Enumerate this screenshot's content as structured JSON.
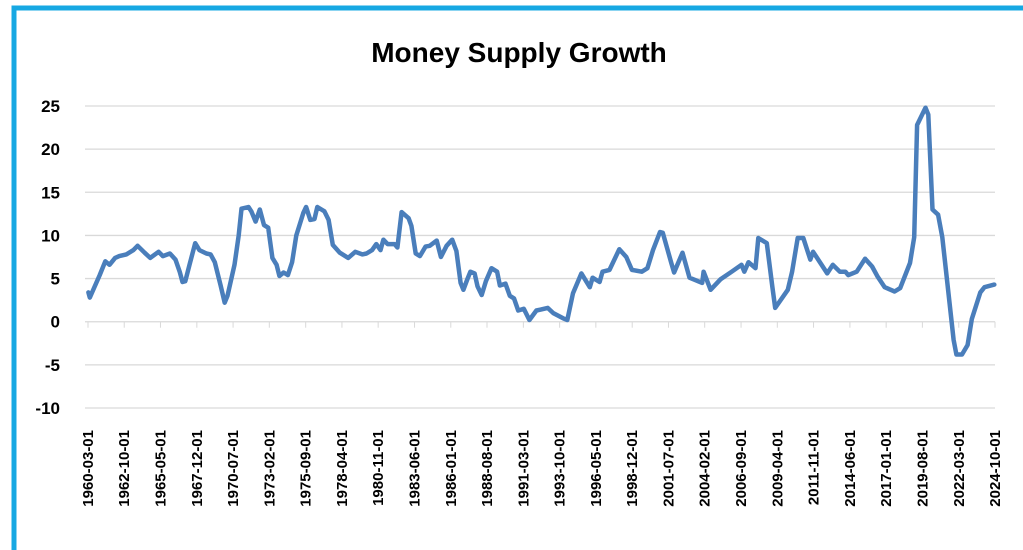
{
  "chart_data": {
    "type": "line",
    "title": "Money Supply Growth",
    "xlabel": "",
    "ylabel": "",
    "ylim": [
      -10,
      25
    ],
    "yticks": [
      "25",
      "20",
      "15",
      "10",
      "5",
      "0",
      "-5",
      "-10"
    ],
    "ytick_values": [
      25,
      20,
      15,
      10,
      5,
      0,
      -5,
      -10
    ],
    "grid": true,
    "legend": "none",
    "x_tick_labels": [
      "1960-03-01",
      "1962-10-01",
      "1965-05-01",
      "1967-12-01",
      "1970-07-01",
      "1973-02-01",
      "1975-09-01",
      "1978-04-01",
      "1980-11-01",
      "1983-06-01",
      "1986-01-01",
      "1988-08-01",
      "1991-03-01",
      "1993-10-01",
      "1996-05-01",
      "1998-12-01",
      "2001-07-01",
      "2004-02-01",
      "2006-09-01",
      "2009-04-01",
      "2011-11-01",
      "2014-06-01",
      "2017-01-01",
      "2019-08-01",
      "2022-03-01",
      "2024-10-01"
    ],
    "x_tick_years": [
      1960.17,
      1962.75,
      1965.33,
      1967.92,
      1970.5,
      1973.08,
      1975.67,
      1978.25,
      1980.83,
      1983.42,
      1986.0,
      1988.58,
      1991.17,
      1993.75,
      1996.33,
      1998.92,
      2001.5,
      2004.08,
      2006.67,
      2009.25,
      2011.83,
      2014.42,
      2017.0,
      2019.58,
      2022.17,
      2024.75
    ],
    "color": "#4a7ebb",
    "border_color": "#17a8e3",
    "series": [
      {
        "name": "Money Supply Growth",
        "points": [
          [
            1960.2,
            3.4
          ],
          [
            1960.3,
            2.8
          ],
          [
            1961.0,
            5.4
          ],
          [
            1961.4,
            7.0
          ],
          [
            1961.7,
            6.6
          ],
          [
            1962.1,
            7.4
          ],
          [
            1962.4,
            7.6
          ],
          [
            1962.9,
            7.8
          ],
          [
            1963.4,
            8.3
          ],
          [
            1963.7,
            8.8
          ],
          [
            1964.2,
            8.0
          ],
          [
            1964.6,
            7.4
          ],
          [
            1965.2,
            8.1
          ],
          [
            1965.5,
            7.6
          ],
          [
            1966.0,
            7.9
          ],
          [
            1966.4,
            7.2
          ],
          [
            1966.7,
            5.8
          ],
          [
            1966.9,
            4.6
          ],
          [
            1967.1,
            4.7
          ],
          [
            1967.4,
            6.6
          ],
          [
            1967.8,
            9.1
          ],
          [
            1968.1,
            8.3
          ],
          [
            1968.6,
            7.9
          ],
          [
            1968.9,
            7.8
          ],
          [
            1969.2,
            6.9
          ],
          [
            1969.6,
            4.3
          ],
          [
            1969.9,
            2.2
          ],
          [
            1970.1,
            3.0
          ],
          [
            1970.6,
            6.6
          ],
          [
            1970.9,
            10.0
          ],
          [
            1971.1,
            13.1
          ],
          [
            1971.6,
            13.3
          ],
          [
            1971.8,
            12.8
          ],
          [
            1972.1,
            11.6
          ],
          [
            1972.4,
            13.0
          ],
          [
            1972.7,
            11.2
          ],
          [
            1973.0,
            10.9
          ],
          [
            1973.3,
            7.4
          ],
          [
            1973.6,
            6.6
          ],
          [
            1973.8,
            5.3
          ],
          [
            1974.1,
            5.7
          ],
          [
            1974.4,
            5.4
          ],
          [
            1974.7,
            6.9
          ],
          [
            1975.0,
            10.0
          ],
          [
            1975.5,
            12.6
          ],
          [
            1975.7,
            13.3
          ],
          [
            1976.0,
            11.8
          ],
          [
            1976.3,
            11.9
          ],
          [
            1976.5,
            13.3
          ],
          [
            1977.0,
            12.8
          ],
          [
            1977.3,
            11.8
          ],
          [
            1977.6,
            8.9
          ],
          [
            1978.1,
            8.0
          ],
          [
            1978.7,
            7.4
          ],
          [
            1979.2,
            8.1
          ],
          [
            1979.7,
            7.8
          ],
          [
            1980.0,
            7.9
          ],
          [
            1980.4,
            8.3
          ],
          [
            1980.7,
            9.0
          ],
          [
            1981.0,
            8.3
          ],
          [
            1981.2,
            9.5
          ],
          [
            1981.5,
            9.0
          ],
          [
            1982.0,
            9.0
          ],
          [
            1982.2,
            8.6
          ],
          [
            1982.5,
            12.7
          ],
          [
            1983.0,
            12.0
          ],
          [
            1983.2,
            11.1
          ],
          [
            1983.5,
            7.9
          ],
          [
            1983.8,
            7.6
          ],
          [
            1984.2,
            8.7
          ],
          [
            1984.5,
            8.8
          ],
          [
            1985.0,
            9.4
          ],
          [
            1985.3,
            7.5
          ],
          [
            1985.7,
            8.8
          ],
          [
            1986.1,
            9.5
          ],
          [
            1986.4,
            8.2
          ],
          [
            1986.7,
            4.5
          ],
          [
            1986.9,
            3.7
          ],
          [
            1987.2,
            5.0
          ],
          [
            1987.4,
            5.8
          ],
          [
            1987.7,
            5.6
          ],
          [
            1987.9,
            4.1
          ],
          [
            1988.2,
            3.1
          ],
          [
            1988.5,
            4.7
          ],
          [
            1988.9,
            6.2
          ],
          [
            1989.3,
            5.8
          ],
          [
            1989.5,
            4.2
          ],
          [
            1989.9,
            4.4
          ],
          [
            1990.2,
            3.0
          ],
          [
            1990.5,
            2.7
          ],
          [
            1990.8,
            1.3
          ],
          [
            1991.2,
            1.5
          ],
          [
            1991.6,
            0.2
          ],
          [
            1992.1,
            1.3
          ],
          [
            1992.4,
            1.4
          ],
          [
            1992.9,
            1.6
          ],
          [
            1993.3,
            1.0
          ],
          [
            1994.0,
            0.4
          ],
          [
            1994.3,
            0.2
          ],
          [
            1994.7,
            3.3
          ],
          [
            1995.3,
            5.6
          ],
          [
            1995.9,
            4.0
          ],
          [
            1996.1,
            5.1
          ],
          [
            1996.6,
            4.6
          ],
          [
            1996.8,
            5.8
          ],
          [
            1997.3,
            6.0
          ],
          [
            1998.0,
            8.4
          ],
          [
            1998.5,
            7.5
          ],
          [
            1998.9,
            6.0
          ],
          [
            1999.6,
            5.8
          ],
          [
            2000.0,
            6.2
          ],
          [
            2000.4,
            8.3
          ],
          [
            2000.9,
            10.4
          ],
          [
            2001.1,
            10.3
          ],
          [
            2001.7,
            6.8
          ],
          [
            2001.9,
            5.7
          ],
          [
            2002.5,
            8.0
          ],
          [
            2003.0,
            5.1
          ],
          [
            2003.9,
            4.5
          ],
          [
            2004.0,
            5.8
          ],
          [
            2004.5,
            3.7
          ],
          [
            2005.2,
            4.9
          ],
          [
            2006.0,
            5.8
          ],
          [
            2006.7,
            6.6
          ],
          [
            2006.9,
            5.8
          ],
          [
            2007.2,
            6.9
          ],
          [
            2007.7,
            6.2
          ],
          [
            2007.9,
            9.7
          ],
          [
            2008.5,
            9.1
          ],
          [
            2008.9,
            4.0
          ],
          [
            2009.1,
            1.6
          ],
          [
            2010.0,
            3.7
          ],
          [
            2010.3,
            5.8
          ],
          [
            2010.7,
            9.7
          ],
          [
            2011.1,
            9.7
          ],
          [
            2011.6,
            7.2
          ],
          [
            2011.8,
            8.1
          ],
          [
            2012.8,
            5.6
          ],
          [
            2013.2,
            6.6
          ],
          [
            2013.7,
            5.8
          ],
          [
            2014.1,
            5.8
          ],
          [
            2014.3,
            5.4
          ],
          [
            2014.9,
            5.8
          ],
          [
            2015.5,
            7.3
          ],
          [
            2016.0,
            6.4
          ],
          [
            2016.4,
            5.2
          ],
          [
            2016.9,
            4.0
          ],
          [
            2017.6,
            3.5
          ],
          [
            2018.0,
            3.9
          ],
          [
            2018.7,
            6.8
          ],
          [
            2019.0,
            9.8
          ],
          [
            2019.2,
            22.8
          ],
          [
            2019.8,
            24.8
          ],
          [
            2020.0,
            24.0
          ],
          [
            2020.3,
            13.0
          ],
          [
            2020.7,
            12.4
          ],
          [
            2021.0,
            9.8
          ],
          [
            2021.8,
            -2.1
          ],
          [
            2022.0,
            -3.8
          ],
          [
            2022.4,
            -3.8
          ],
          [
            2022.8,
            -2.7
          ],
          [
            2023.1,
            0.3
          ],
          [
            2023.7,
            3.4
          ],
          [
            2024.0,
            4.0
          ],
          [
            2024.7,
            4.3
          ]
        ]
      }
    ]
  }
}
